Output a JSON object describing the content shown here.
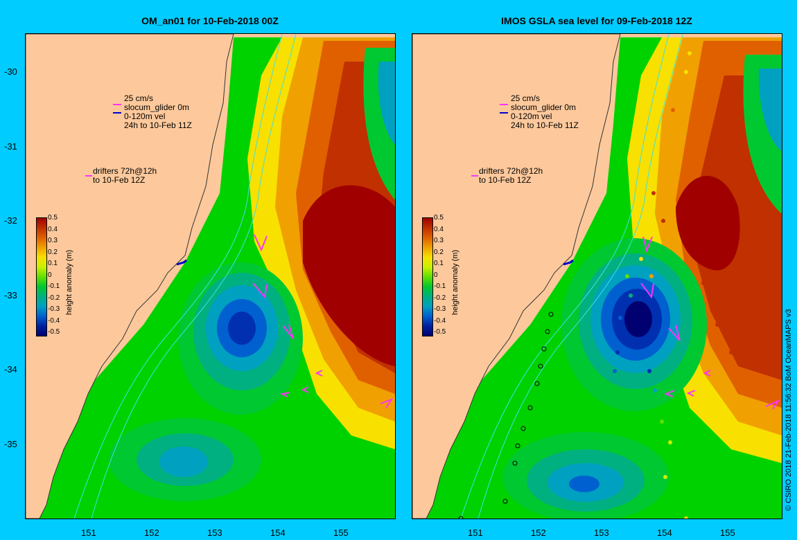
{
  "left_panel": {
    "title": "OM_an01 for 10-Feb-2018 00Z",
    "legend_vel": "25 cm/s\nslocum_glider 0m\n0-120m vel\n24h to 10-Feb 11Z",
    "legend_drifters": "drifters 72h@12h\nto 10-Feb 12Z"
  },
  "right_panel": {
    "title": "IMOS GSLA sea level  for 09-Feb-2018 12Z",
    "legend_vel": "25 cm/s\nslocum_glider 0m\n0-120m vel\n24h to 10-Feb 11Z",
    "legend_drifters": "drifters 72h@12h\nto 10-Feb 12Z"
  },
  "colorbar": {
    "label": "height anomaly (m)",
    "ticks": [
      "0.5",
      "0.4",
      "0.3",
      "0.2",
      "0.1",
      "0",
      "-0.1",
      "-0.2",
      "-0.3",
      "-0.4",
      "-0.5"
    ],
    "colors": [
      "#a00000",
      "#c03000",
      "#e06000",
      "#f0a000",
      "#f8e000",
      "#c8f000",
      "#60e000",
      "#00c830",
      "#00b080",
      "#00a0c0",
      "#0060d0",
      "#0020a0",
      "#000070"
    ]
  },
  "y_ticks": [
    "-30",
    "-31",
    "-32",
    "-33",
    "-34",
    "-35"
  ],
  "x_ticks": [
    "151",
    "152",
    "153",
    "154",
    "155"
  ],
  "credit": "© CSIRO 2018   21-Feb-2018 11:56:32 BoM OceanMAPS v3",
  "colors": {
    "background": "#00ccff",
    "land": "#fdc99c",
    "arrow": "#ff33ff",
    "glider": "#0000cc",
    "isobath": "#40e0e0"
  }
}
